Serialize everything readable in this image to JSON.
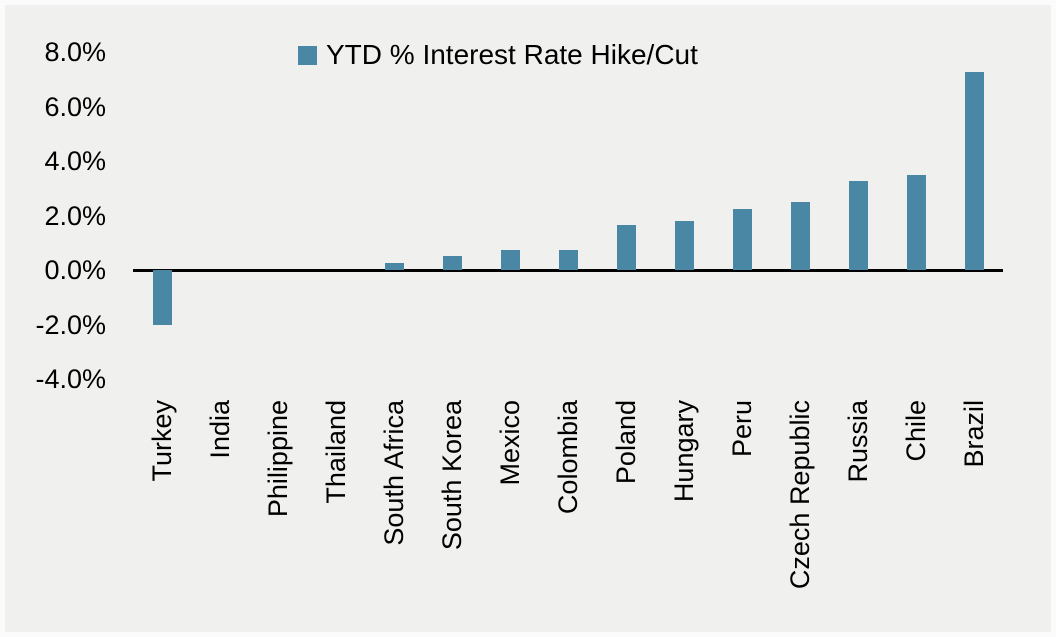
{
  "chart_data": {
    "type": "bar",
    "legend": "YTD % Interest Rate Hike/Cut",
    "legend_position": "top-center",
    "categories": [
      "Turkey",
      "India",
      "Philippine",
      "Thailand",
      "South Africa",
      "South Korea",
      "Mexico",
      "Colombia",
      "Poland",
      "Hungary",
      "Peru",
      "Czech Republic",
      "Russia",
      "Chile",
      "Brazil"
    ],
    "values": [
      -2.0,
      0,
      0,
      0,
      0.25,
      0.5,
      0.75,
      0.75,
      1.65,
      1.8,
      2.25,
      2.5,
      3.25,
      3.5,
      7.25
    ],
    "y_ticks": [
      {
        "label": "8.0%",
        "value": 8
      },
      {
        "label": "6.0%",
        "value": 6
      },
      {
        "label": "4.0%",
        "value": 4
      },
      {
        "label": "2.0%",
        "value": 2
      },
      {
        "label": "0.0%",
        "value": 0
      },
      {
        "label": "-2.0%",
        "value": -2
      },
      {
        "label": "-4.0%",
        "value": -4
      }
    ],
    "ylim": [
      -4,
      8
    ],
    "xlabel": "",
    "ylabel": "",
    "title": "",
    "grid": false,
    "bar_color": "#4A87A4",
    "background_color": "#F0F0EF",
    "axis_color": "#000000",
    "text_color": "#000000"
  }
}
